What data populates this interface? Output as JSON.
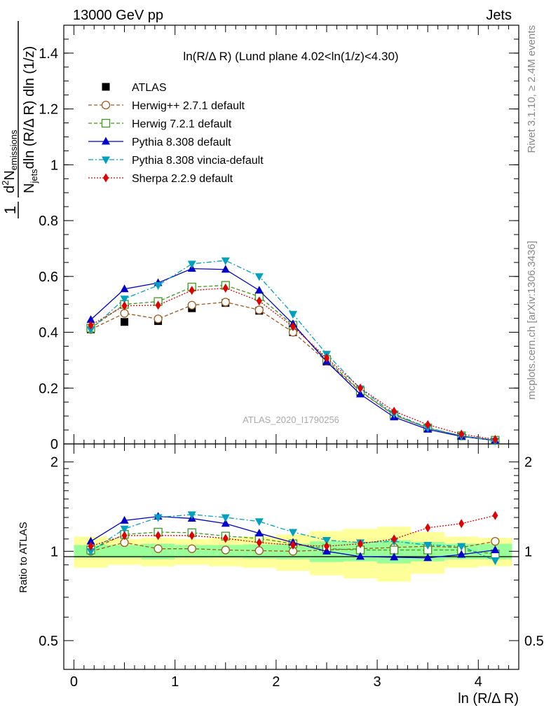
{
  "header": {
    "left": "13000 GeV pp",
    "right": "Jets",
    "title": "ln(R/Δ R) (Lund plane 4.02<ln(1/z)<4.30)",
    "side_rivet": "Rivet 3.1.10, ≥ 2.4M events",
    "side_mcplots": "mcplots.cern.ch [arXiv:1306.3436]",
    "watermark": "ATLAS_2020_I1790256"
  },
  "ylabel_top": {
    "frac_num": "1",
    "den_main": "N",
    "den_sub": "jets",
    "den_rest": "dln (R/Δ R) dln (1/z)",
    "num_d": "d",
    "num_sup": "2",
    "num_N": "N",
    "num_sub": "emissions"
  },
  "chart_data": [
    {
      "type": "line",
      "panel": "main",
      "xlim": [
        -0.1,
        4.4
      ],
      "ylim": [
        0,
        1.5
      ],
      "yticks": [
        "0",
        "0.2",
        "0.4",
        "0.6",
        "0.8",
        "1",
        "1.2",
        "1.4"
      ],
      "x": [
        0.167,
        0.5,
        0.833,
        1.167,
        1.5,
        1.833,
        2.167,
        2.5,
        2.833,
        3.167,
        3.5,
        3.833,
        4.167
      ],
      "series": [
        {
          "name": "ATLAS",
          "color": "#000000",
          "style": "data",
          "marker": "square",
          "values": [
            0.41,
            0.437,
            0.44,
            0.486,
            0.505,
            0.477,
            0.4,
            0.295,
            0.185,
            0.1,
            0.055,
            0.028,
            0.012
          ]
        },
        {
          "name": "Herwig++ 2.7.1 default",
          "color": "#a05a1a",
          "dash": "5,3",
          "marker": "circle-open",
          "values": [
            0.41,
            0.468,
            0.448,
            0.497,
            0.508,
            0.48,
            0.4,
            0.296,
            0.188,
            0.103,
            0.057,
            0.029,
            0.013
          ]
        },
        {
          "name": "Herwig 7.2.1 default",
          "color": "#3a9a1a",
          "dash": "5,3",
          "marker": "square-open",
          "values": [
            0.415,
            0.5,
            0.51,
            0.562,
            0.568,
            0.528,
            0.425,
            0.302,
            0.19,
            0.104,
            0.057,
            0.029,
            0.013
          ]
        },
        {
          "name": "Pythia 8.308 default",
          "color": "#0000cc",
          "dash": "",
          "marker": "triangle-up",
          "values": [
            0.445,
            0.555,
            0.577,
            0.628,
            0.625,
            0.55,
            0.43,
            0.295,
            0.178,
            0.096,
            0.052,
            0.027,
            0.012
          ]
        },
        {
          "name": "Pythia 8.308 vincia-default",
          "color": "#00a0c0",
          "dash": "7,3,2,3",
          "marker": "triangle-down",
          "values": [
            0.41,
            0.52,
            0.568,
            0.645,
            0.657,
            0.6,
            0.465,
            0.322,
            0.198,
            0.108,
            0.058,
            0.029,
            0.011
          ]
        },
        {
          "name": "Sherpa 2.2.9 default",
          "color": "#e00000",
          "dash": "2,2",
          "marker": "diamond",
          "values": [
            0.425,
            0.495,
            0.497,
            0.55,
            0.558,
            0.512,
            0.42,
            0.308,
            0.2,
            0.117,
            0.069,
            0.035,
            0.016
          ]
        }
      ]
    },
    {
      "type": "line",
      "panel": "ratio",
      "ylabel": "Ratio to ATLAS",
      "xlabel": "ln (R/Δ R)",
      "xlim": [
        -0.1,
        4.4
      ],
      "ylim": [
        0.4,
        2.3
      ],
      "log_y": true,
      "xticks": [
        "0",
        "1",
        "2",
        "3",
        "4"
      ],
      "yticks": [
        "0.5",
        "1",
        "2"
      ],
      "x": [
        0.167,
        0.5,
        0.833,
        1.167,
        1.5,
        1.833,
        2.167,
        2.5,
        2.833,
        3.167,
        3.5,
        3.833,
        4.167
      ],
      "band_green": [
        [
          0.95,
          1.05
        ],
        [
          0.95,
          1.05
        ],
        [
          0.94,
          1.06
        ],
        [
          0.95,
          1.05
        ],
        [
          0.95,
          1.05
        ],
        [
          0.945,
          1.055
        ],
        [
          0.94,
          1.06
        ],
        [
          0.92,
          1.08
        ],
        [
          0.925,
          1.075
        ],
        [
          0.91,
          1.09
        ],
        [
          0.925,
          1.075
        ],
        [
          0.94,
          1.06
        ],
        [
          0.94,
          1.06
        ]
      ],
      "band_yellow": [
        [
          0.88,
          1.12
        ],
        [
          0.9,
          1.1
        ],
        [
          0.89,
          1.11
        ],
        [
          0.9,
          1.1
        ],
        [
          0.89,
          1.11
        ],
        [
          0.88,
          1.12
        ],
        [
          0.86,
          1.14
        ],
        [
          0.83,
          1.17
        ],
        [
          0.81,
          1.19
        ],
        [
          0.79,
          1.21
        ],
        [
          0.84,
          1.16
        ],
        [
          0.88,
          1.12
        ],
        [
          0.89,
          1.11
        ]
      ],
      "series": [
        {
          "name": "Herwig++ 2.7.1 default",
          "color": "#a05a1a",
          "dash": "5,3",
          "marker": "circle-open",
          "values": [
            1.0,
            1.07,
            1.02,
            1.02,
            1.01,
            1.005,
            1.0,
            1.01,
            1.02,
            1.03,
            1.04,
            1.03,
            1.08
          ]
        },
        {
          "name": "Herwig 7.2.1 default",
          "color": "#3a9a1a",
          "dash": "5,3",
          "marker": "square-open",
          "values": [
            1.01,
            1.14,
            1.16,
            1.155,
            1.125,
            1.105,
            1.06,
            1.02,
            1.01,
            1.01,
            1.01,
            1.01,
            0.98
          ]
        },
        {
          "name": "Pythia 8.308 default",
          "color": "#0000cc",
          "dash": "",
          "marker": "triangle-up",
          "values": [
            1.08,
            1.27,
            1.31,
            1.29,
            1.24,
            1.15,
            1.07,
            1.0,
            0.96,
            0.955,
            0.95,
            0.975,
            1.01
          ]
        },
        {
          "name": "Pythia 8.308 vincia-default",
          "color": "#00a0c0",
          "dash": "7,3,2,3",
          "marker": "triangle-down",
          "values": [
            1.0,
            1.19,
            1.3,
            1.33,
            1.3,
            1.26,
            1.16,
            1.09,
            1.07,
            1.08,
            1.05,
            1.04,
            0.93
          ]
        },
        {
          "name": "Sherpa 2.2.9 default",
          "color": "#e00000",
          "dash": "2,2",
          "marker": "diamond",
          "values": [
            1.04,
            1.13,
            1.13,
            1.13,
            1.105,
            1.07,
            1.05,
            1.04,
            1.06,
            1.1,
            1.2,
            1.24,
            1.32
          ]
        }
      ]
    }
  ]
}
